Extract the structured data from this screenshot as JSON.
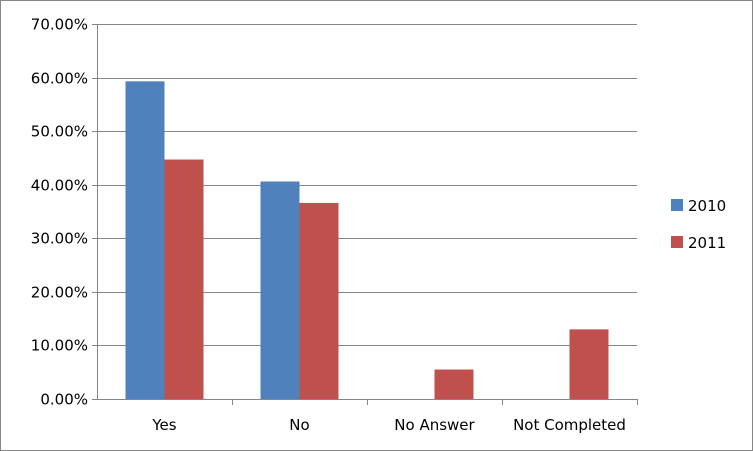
{
  "chart_data": {
    "type": "bar",
    "categories": [
      "Yes",
      "No",
      "No Answer",
      "Not Completed"
    ],
    "series": [
      {
        "name": "2010",
        "color": "#4F81BD",
        "values": [
          0.593,
          0.406,
          0.0,
          0.0
        ]
      },
      {
        "name": "2011",
        "color": "#C0504D",
        "values": [
          0.447,
          0.366,
          0.055,
          0.13
        ]
      }
    ],
    "ylim": [
      0,
      0.7
    ],
    "ytick_step": 0.1,
    "ytick_labels": [
      "0.00%",
      "10.00%",
      "20.00%",
      "30.00%",
      "40.00%",
      "50.00%",
      "60.00%",
      "70.00%"
    ],
    "grid": true,
    "legend_position": "right",
    "title": "",
    "xlabel": "",
    "ylabel": ""
  }
}
